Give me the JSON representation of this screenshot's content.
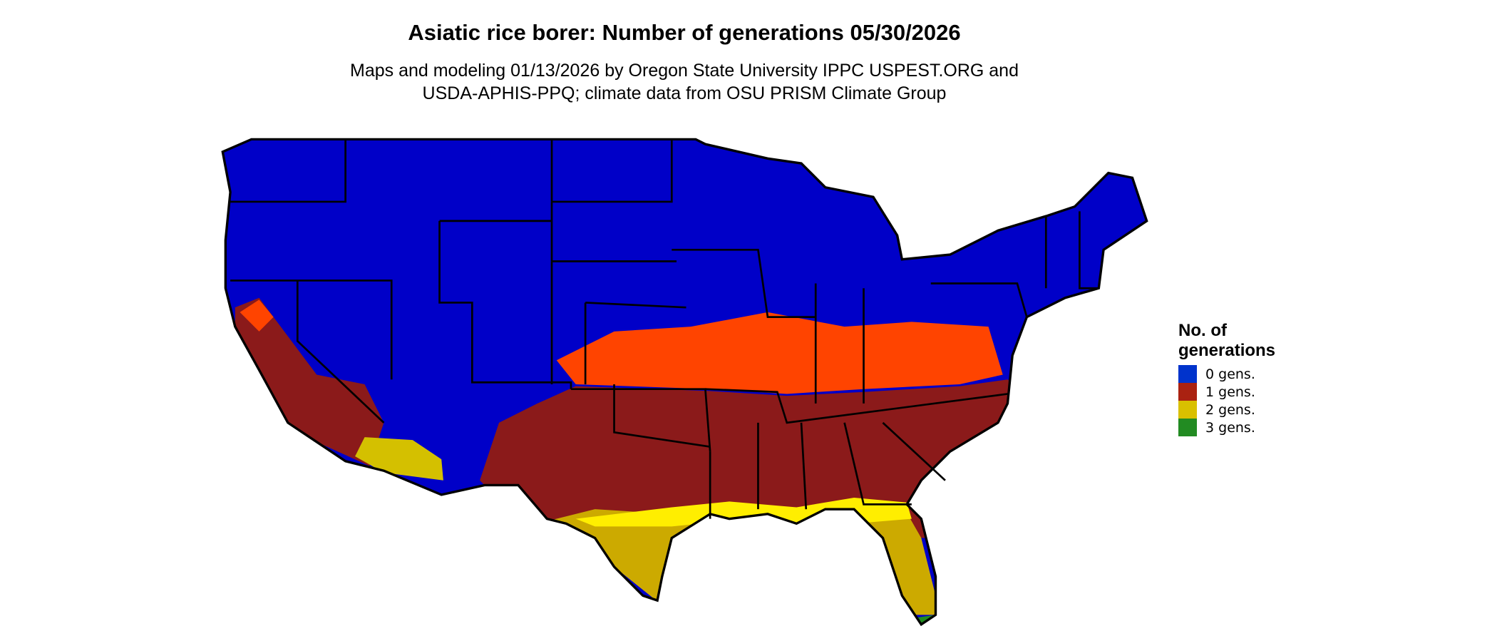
{
  "title": "Asiatic rice borer: Number of generations 05/30/2026",
  "subtitle_line1": "Maps and modeling 01/13/2026 by Oregon State University IPPC USPEST.ORG and",
  "subtitle_line2": "USDA-APHIS-PPQ; climate data from OSU PRISM Climate Group",
  "map": {
    "region": "Contiguous United States",
    "colors": {
      "zero": "#0000c8",
      "one_light": "#ff4400",
      "one": "#8b1a1a",
      "two": "#d4b000",
      "two_bright": "#ffee00",
      "three": "#1f8a1f"
    }
  },
  "legend": {
    "title_line1": "No. of",
    "title_line2": "generations",
    "items": [
      {
        "label": "0 gens.",
        "color": "#0033cc"
      },
      {
        "label": "1 gens.",
        "color": "#aa2211"
      },
      {
        "label": "2 gens.",
        "color": "#d9c000"
      },
      {
        "label": "3 gens.",
        "color": "#228b22"
      }
    ]
  }
}
